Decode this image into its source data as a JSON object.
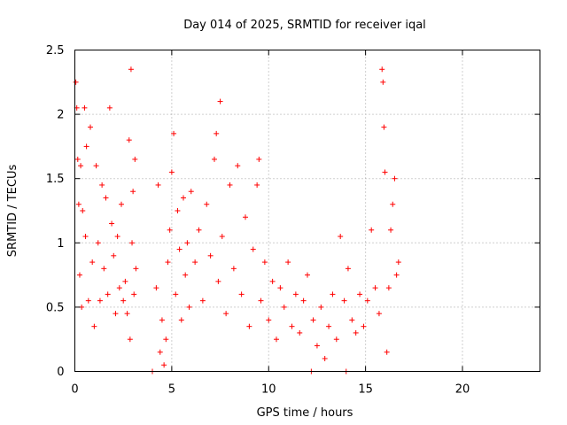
{
  "chart_data": {
    "type": "scatter",
    "title": "Day 014 of 2025, SRMTID for receiver iqal",
    "xlabel": "GPS time / hours",
    "ylabel": "SRMTID / TECUs",
    "xlim": [
      0,
      24
    ],
    "ylim": [
      0,
      2.5
    ],
    "xticks": [
      0,
      5,
      10,
      15,
      20
    ],
    "yticks": [
      0,
      0.5,
      1,
      1.5,
      2,
      2.5
    ],
    "xtick_labels": [
      "0",
      "5",
      "10",
      "15",
      "20"
    ],
    "ytick_labels": [
      "0",
      "0.5",
      "1",
      "1.5",
      "2",
      "2.5"
    ],
    "grid": true,
    "marker": "+",
    "series": [
      {
        "name": "iqal SRMTID",
        "color": "#ff0000",
        "points": [
          [
            0.05,
            2.25
          ],
          [
            0.1,
            2.05
          ],
          [
            0.15,
            1.65
          ],
          [
            0.2,
            1.3
          ],
          [
            0.25,
            0.75
          ],
          [
            0.3,
            1.6
          ],
          [
            0.35,
            0.5
          ],
          [
            0.4,
            1.25
          ],
          [
            0.5,
            2.05
          ],
          [
            0.55,
            1.05
          ],
          [
            0.6,
            1.75
          ],
          [
            0.7,
            0.55
          ],
          [
            0.8,
            1.9
          ],
          [
            0.9,
            0.85
          ],
          [
            1.0,
            0.35
          ],
          [
            1.1,
            1.6
          ],
          [
            1.2,
            1.0
          ],
          [
            1.3,
            0.55
          ],
          [
            1.4,
            1.45
          ],
          [
            1.5,
            0.8
          ],
          [
            1.6,
            1.35
          ],
          [
            1.7,
            0.6
          ],
          [
            1.8,
            2.05
          ],
          [
            1.9,
            1.15
          ],
          [
            2.0,
            0.9
          ],
          [
            2.1,
            0.45
          ],
          [
            2.2,
            1.05
          ],
          [
            2.3,
            0.65
          ],
          [
            2.4,
            1.3
          ],
          [
            2.5,
            0.55
          ],
          [
            2.6,
            0.7
          ],
          [
            2.7,
            0.45
          ],
          [
            2.8,
            1.8
          ],
          [
            2.85,
            0.25
          ],
          [
            2.9,
            2.35
          ],
          [
            2.95,
            1.0
          ],
          [
            3.0,
            1.4
          ],
          [
            3.05,
            0.6
          ],
          [
            3.1,
            1.65
          ],
          [
            3.15,
            0.8
          ],
          [
            4.0,
            0.0
          ],
          [
            4.2,
            0.65
          ],
          [
            4.3,
            1.45
          ],
          [
            4.4,
            0.15
          ],
          [
            4.5,
            0.4
          ],
          [
            4.6,
            0.05
          ],
          [
            4.7,
            0.25
          ],
          [
            4.8,
            0.85
          ],
          [
            4.9,
            1.1
          ],
          [
            5.0,
            1.55
          ],
          [
            5.1,
            1.85
          ],
          [
            5.2,
            0.6
          ],
          [
            5.3,
            1.25
          ],
          [
            5.4,
            0.95
          ],
          [
            5.5,
            0.4
          ],
          [
            5.6,
            1.35
          ],
          [
            5.7,
            0.75
          ],
          [
            5.8,
            1.0
          ],
          [
            5.9,
            0.5
          ],
          [
            6.0,
            1.4
          ],
          [
            6.2,
            0.85
          ],
          [
            6.4,
            1.1
          ],
          [
            6.6,
            0.55
          ],
          [
            6.8,
            1.3
          ],
          [
            7.0,
            0.9
          ],
          [
            7.2,
            1.65
          ],
          [
            7.3,
            1.85
          ],
          [
            7.4,
            0.7
          ],
          [
            7.5,
            2.1
          ],
          [
            7.6,
            1.05
          ],
          [
            7.8,
            0.45
          ],
          [
            8.0,
            1.45
          ],
          [
            8.2,
            0.8
          ],
          [
            8.4,
            1.6
          ],
          [
            8.6,
            0.6
          ],
          [
            8.8,
            1.2
          ],
          [
            9.0,
            0.35
          ],
          [
            9.2,
            0.95
          ],
          [
            9.4,
            1.45
          ],
          [
            9.5,
            1.65
          ],
          [
            9.6,
            0.55
          ],
          [
            9.8,
            0.85
          ],
          [
            10.0,
            0.4
          ],
          [
            10.2,
            0.7
          ],
          [
            10.4,
            0.25
          ],
          [
            10.6,
            0.65
          ],
          [
            10.8,
            0.5
          ],
          [
            11.0,
            0.85
          ],
          [
            11.2,
            0.35
          ],
          [
            11.4,
            0.6
          ],
          [
            11.6,
            0.3
          ],
          [
            11.8,
            0.55
          ],
          [
            12.0,
            0.75
          ],
          [
            12.2,
            0.0
          ],
          [
            12.3,
            0.4
          ],
          [
            12.5,
            0.2
          ],
          [
            12.7,
            0.5
          ],
          [
            12.9,
            0.1
          ],
          [
            13.1,
            0.35
          ],
          [
            13.3,
            0.6
          ],
          [
            13.5,
            0.25
          ],
          [
            13.7,
            1.05
          ],
          [
            13.9,
            0.55
          ],
          [
            14.0,
            0.0
          ],
          [
            14.1,
            0.8
          ],
          [
            14.3,
            0.4
          ],
          [
            14.5,
            0.3
          ],
          [
            14.7,
            0.6
          ],
          [
            14.9,
            0.35
          ],
          [
            15.1,
            0.55
          ],
          [
            15.3,
            1.1
          ],
          [
            15.5,
            0.65
          ],
          [
            15.7,
            0.45
          ],
          [
            15.85,
            2.35
          ],
          [
            15.9,
            2.25
          ],
          [
            15.95,
            1.9
          ],
          [
            16.0,
            1.55
          ],
          [
            16.1,
            0.15
          ],
          [
            16.2,
            0.65
          ],
          [
            16.3,
            1.1
          ],
          [
            16.4,
            1.3
          ],
          [
            16.5,
            1.5
          ],
          [
            16.6,
            0.75
          ],
          [
            16.7,
            0.85
          ]
        ]
      }
    ]
  }
}
